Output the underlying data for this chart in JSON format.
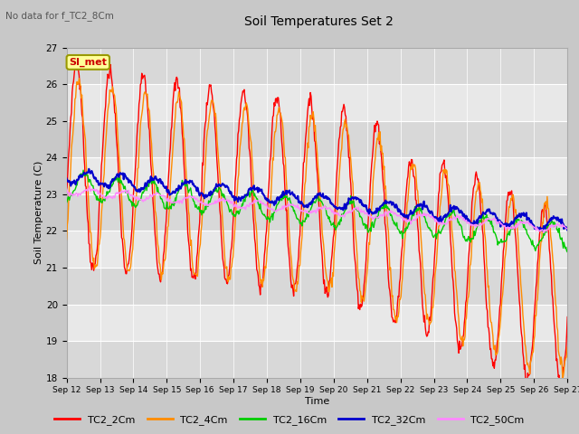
{
  "title": "Soil Temperatures Set 2",
  "xlabel": "Time",
  "ylabel": "Soil Temperature (C)",
  "annotation": "No data for f_TC2_8Cm",
  "legend_label": "SI_met",
  "ylim": [
    18.0,
    27.0
  ],
  "yticks": [
    18.0,
    19.0,
    20.0,
    21.0,
    22.0,
    23.0,
    24.0,
    25.0,
    26.0,
    27.0
  ],
  "date_start": 12,
  "date_end": 27,
  "series": [
    "TC2_2Cm",
    "TC2_4Cm",
    "TC2_16Cm",
    "TC2_32Cm",
    "TC2_50Cm"
  ],
  "colors": [
    "#ff0000",
    "#ff8c00",
    "#00cc00",
    "#0000cc",
    "#ff88ff"
  ],
  "line_widths": [
    1.0,
    1.0,
    1.0,
    1.5,
    1.0
  ],
  "fig_bg": "#c8c8c8",
  "plot_bg_light": "#e8e8e8",
  "plot_bg_dark": "#d8d8d8"
}
